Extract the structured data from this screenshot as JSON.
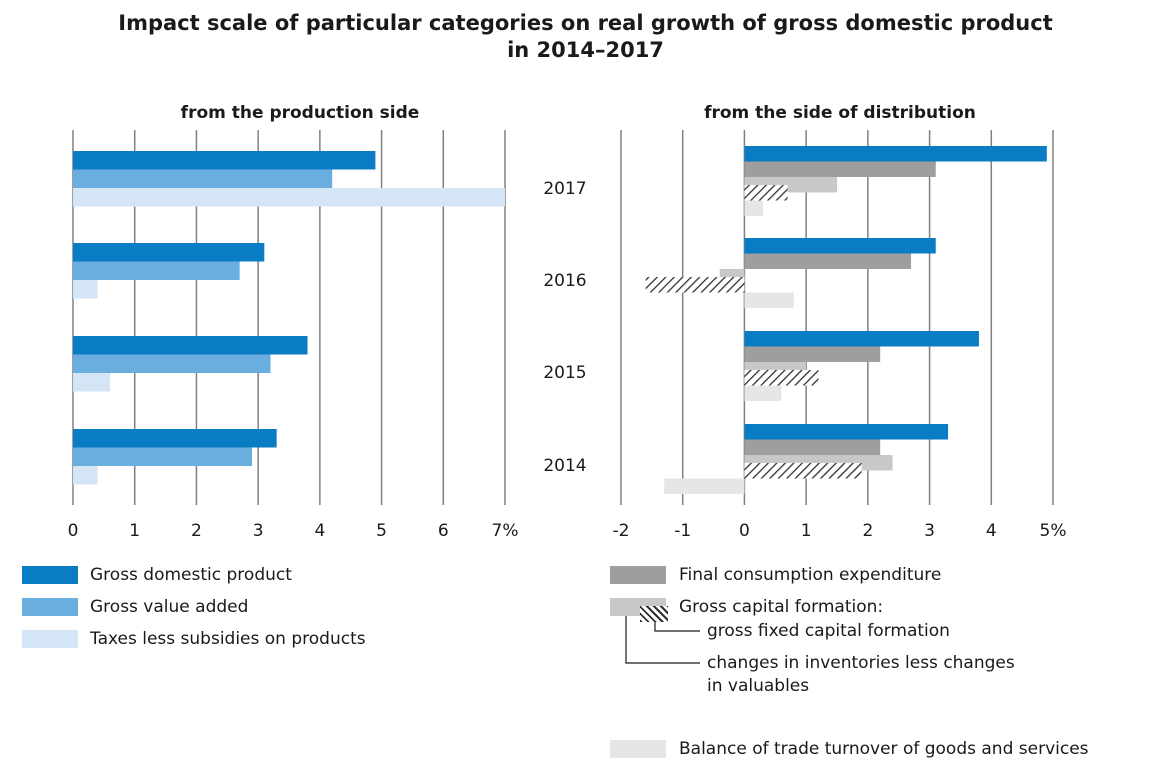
{
  "title": {
    "line1": "Impact scale of particular categories on real growth of gross domestic product",
    "line2": "in 2014–2017"
  },
  "colors": {
    "gdp": "#0a7cc4",
    "gva": "#6aaee0",
    "taxes": "#d4e6f6",
    "final_consumption": "#9e9e9e",
    "gross_capital": "#c8c8c8",
    "gfcf_hatch": "#2f2f2f",
    "trade_balance": "#e6e6e6",
    "grid": "#808080"
  },
  "chart_data": [
    {
      "type": "bar",
      "orientation": "horizontal",
      "title": "from the production side",
      "categories": [
        "2017",
        "2016",
        "2015",
        "2014"
      ],
      "series": [
        {
          "name": "Gross domestic product",
          "values": [
            4.9,
            3.1,
            3.8,
            3.3
          ]
        },
        {
          "name": "Gross value added",
          "values": [
            4.2,
            2.7,
            3.2,
            2.9
          ]
        },
        {
          "name": "Taxes less subsidies on products",
          "values": [
            7.0,
            0.4,
            0.6,
            0.4
          ]
        }
      ],
      "xlim": [
        0,
        7
      ],
      "x_ticks": [
        "0",
        "1",
        "2",
        "3",
        "4",
        "5",
        "6",
        "7%"
      ],
      "grid": true
    },
    {
      "type": "bar",
      "orientation": "horizontal",
      "title": "from the side of distribution",
      "categories": [
        "2017",
        "2016",
        "2015",
        "2014"
      ],
      "series": [
        {
          "name": "Gross domestic product",
          "values": [
            4.9,
            3.1,
            3.8,
            3.3
          ]
        },
        {
          "name": "Final consumption expenditure",
          "values": [
            3.1,
            2.7,
            2.2,
            2.2
          ]
        },
        {
          "name": "Gross capital formation",
          "values": [
            1.5,
            -0.4,
            1.0,
            2.4
          ]
        },
        {
          "name": "gross fixed capital formation",
          "values": [
            0.7,
            -1.6,
            1.2,
            1.9
          ]
        },
        {
          "name": "changes in inventories less changes in valuables",
          "values": [
            null,
            null,
            null,
            null
          ]
        },
        {
          "name": "Balance of trade turnover of goods and services",
          "values": [
            0.3,
            0.8,
            0.6,
            -1.3
          ]
        }
      ],
      "xlim": [
        -2,
        5
      ],
      "x_ticks": [
        "-2",
        "-1",
        "0",
        "1",
        "2",
        "3",
        "4",
        "5%"
      ],
      "grid": true
    }
  ],
  "legend_left": [
    {
      "label": "Gross domestic product",
      "key": "gdp"
    },
    {
      "label": "Gross value added",
      "key": "gva"
    },
    {
      "label": "Taxes less subsidies on products",
      "key": "taxes"
    }
  ],
  "legend_right": {
    "final_consumption": "Final consumption expenditure",
    "gross_capital": "Gross capital formation:",
    "gfcf": "gross fixed capital formation",
    "inventories_line1": "changes in inventories less changes",
    "inventories_line2": "in valuables",
    "trade_balance": "Balance of trade turnover of goods and services"
  }
}
